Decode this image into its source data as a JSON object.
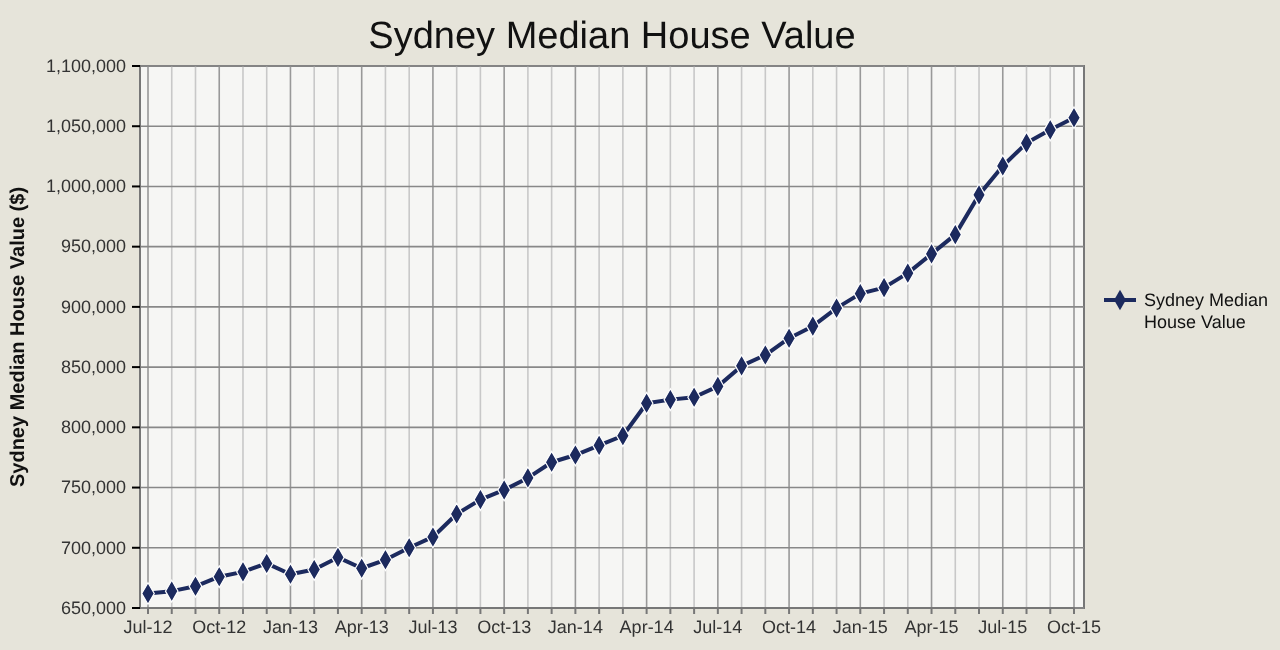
{
  "chart_data": {
    "type": "line",
    "title": "Sydney Median House Value",
    "ylabel": "Sydney Median House Value ($)",
    "categories": [
      "Jul-12",
      null,
      null,
      "Oct-12",
      null,
      null,
      "Jan-13",
      null,
      null,
      "Apr-13",
      null,
      null,
      "Jul-13",
      null,
      null,
      "Oct-13",
      null,
      null,
      "Jan-14",
      null,
      null,
      "Apr-14",
      null,
      null,
      "Jul-14",
      null,
      null,
      "Oct-14",
      null,
      null,
      "Jan-15",
      null,
      null,
      "Apr-15",
      null,
      null,
      "Jul-15",
      null,
      null,
      "Oct-15"
    ],
    "series": [
      {
        "name": "Sydney Median House Value",
        "color": "#1c2a5e",
        "values": [
          662000,
          664000,
          668000,
          676000,
          680000,
          687000,
          678000,
          682000,
          692000,
          683000,
          690000,
          700000,
          709000,
          728000,
          740000,
          748000,
          758000,
          771000,
          777000,
          785000,
          793000,
          820000,
          823000,
          825000,
          834000,
          851000,
          860000,
          874000,
          884000,
          899000,
          911000,
          916000,
          928000,
          944000,
          960000,
          993000,
          1017000,
          1036000,
          1047000,
          1057000
        ]
      }
    ],
    "ylim": [
      650000,
      1100000
    ],
    "yticks": [
      {
        "value": 650000,
        "label": "650,000"
      },
      {
        "value": 700000,
        "label": "700,000"
      },
      {
        "value": 750000,
        "label": "750,000"
      },
      {
        "value": 800000,
        "label": "800,000"
      },
      {
        "value": 850000,
        "label": "850,000"
      },
      {
        "value": 900000,
        "label": "900,000"
      },
      {
        "value": 950000,
        "label": "950,000"
      },
      {
        "value": 1000000,
        "label": "1,000,000"
      },
      {
        "value": 1050000,
        "label": "1,050,000"
      },
      {
        "value": 1100000,
        "label": "1,100,000"
      }
    ],
    "grid": true,
    "legend": "right",
    "marker": "diamond",
    "line_style": "solid"
  }
}
